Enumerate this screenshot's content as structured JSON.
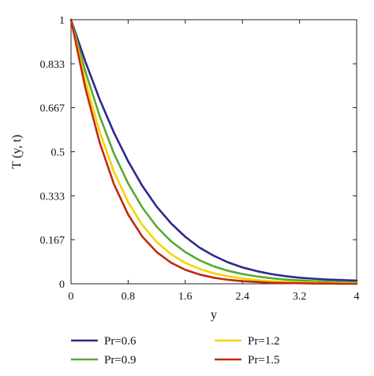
{
  "chart_data": {
    "type": "line",
    "xlabel": "y",
    "ylabel": "T (y, t)",
    "xlim": [
      0,
      4
    ],
    "ylim": [
      0,
      1
    ],
    "x_ticks": [
      "0",
      "0.8",
      "1.6",
      "2.4",
      "3.2",
      "4"
    ],
    "y_ticks": [
      "0",
      "0.167",
      "0.333",
      "0.5",
      "0.667",
      "0.833",
      "1"
    ],
    "grid": false,
    "legend_position": "bottom",
    "x": [
      0,
      0.2,
      0.4,
      0.6,
      0.8,
      1.0,
      1.2,
      1.4,
      1.6,
      1.8,
      2.0,
      2.2,
      2.4,
      2.6,
      2.8,
      3.0,
      3.2,
      3.4,
      3.6,
      3.8,
      4.0
    ],
    "series": [
      {
        "name": "Pr=0.6",
        "color": "#2a2a8c",
        "values": [
          1.0,
          0.842,
          0.699,
          0.573,
          0.464,
          0.37,
          0.292,
          0.229,
          0.178,
          0.137,
          0.106,
          0.081,
          0.062,
          0.048,
          0.037,
          0.029,
          0.023,
          0.019,
          0.016,
          0.014,
          0.012
        ]
      },
      {
        "name": "Pr=0.9",
        "color": "#5aa832",
        "values": [
          1.0,
          0.805,
          0.636,
          0.494,
          0.38,
          0.288,
          0.216,
          0.161,
          0.12,
          0.089,
          0.066,
          0.049,
          0.037,
          0.028,
          0.021,
          0.016,
          0.013,
          0.01,
          0.008,
          0.006,
          0.005
        ]
      },
      {
        "name": "Pr=1.2",
        "color": "#f2d600",
        "values": [
          1.0,
          0.77,
          0.577,
          0.425,
          0.309,
          0.222,
          0.158,
          0.112,
          0.079,
          0.056,
          0.04,
          0.028,
          0.02,
          0.014,
          0.01,
          0.007,
          0.005,
          0.004,
          0.003,
          0.002,
          0.002
        ]
      },
      {
        "name": "Pr=1.5",
        "color": "#c02a10",
        "values": [
          1.0,
          0.742,
          0.536,
          0.378,
          0.262,
          0.178,
          0.12,
          0.08,
          0.053,
          0.035,
          0.023,
          0.015,
          0.01,
          0.007,
          0.004,
          0.003,
          0.002,
          0.001,
          0.001,
          0.0,
          0.0
        ]
      }
    ]
  }
}
